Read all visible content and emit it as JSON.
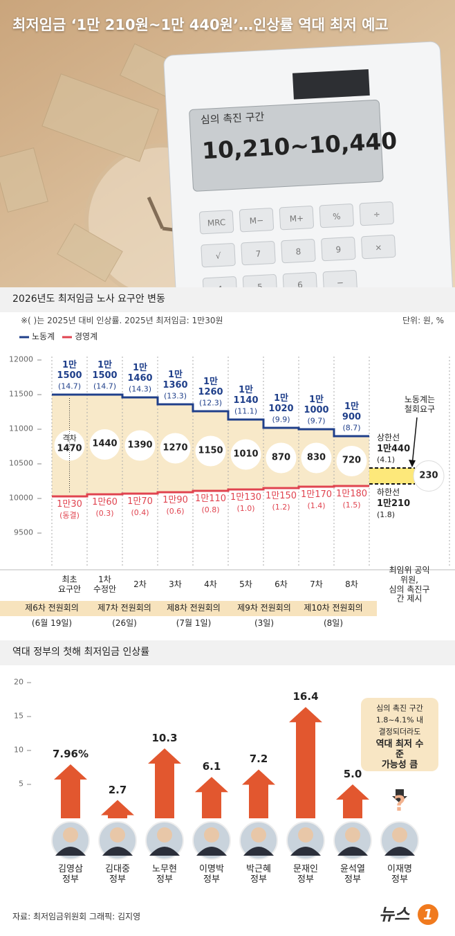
{
  "header": {
    "title": "최저임금 ‘1만 210원~1만 440원’…인상률 역대 최저 예고",
    "calculator": {
      "label": "심의 촉진 구간",
      "display": "10,210~10,440",
      "keys": [
        "MRC",
        "M−",
        "M+",
        "%",
        "÷",
        "√",
        "7",
        "8",
        "9",
        "×",
        "4",
        "5",
        "6",
        "−"
      ]
    }
  },
  "chart_data": [
    {
      "type": "step",
      "title": "2026년도 최저임금 노사 요구안 변동",
      "note": "※( )는 2025년 대비 인상률.  2025년 최저임금: 1만30원",
      "unit": "단위: 원, %",
      "categories": [
        "최초\n요구안",
        "1차\n수정안",
        "2차",
        "3차",
        "4차",
        "5차",
        "6차",
        "7차",
        "8차"
      ],
      "series": [
        {
          "name": "노동계",
          "color": "#1f3f8a",
          "values": [
            11500,
            11500,
            11460,
            11360,
            11260,
            11140,
            11020,
            11000,
            10900
          ],
          "value_labels": [
            "1만\n1500",
            "1만\n1500",
            "1만\n1460",
            "1만\n1360",
            "1만\n1260",
            "1만\n1140",
            "1만\n1020",
            "1만\n1000",
            "1만\n900"
          ],
          "rate_labels": [
            "(14.7)",
            "(14.7)",
            "(14.3)",
            "(13.3)",
            "(12.3)",
            "(11.1)",
            "(9.9)",
            "(9.7)",
            "(8.7)"
          ]
        },
        {
          "name": "경영계",
          "color": "#e0434f",
          "values": [
            10030,
            10060,
            10070,
            10090,
            10110,
            10130,
            10150,
            10170,
            10180
          ],
          "value_labels": [
            "1만30",
            "1만60",
            "1만70",
            "1만90",
            "1만110",
            "1만130",
            "1만150",
            "1만170",
            "1만180"
          ],
          "rate_labels": [
            "(동결)",
            "(0.3)",
            "(0.4)",
            "(0.6)",
            "(0.8)",
            "(1.0)",
            "(1.2)",
            "(1.4)",
            "(1.5)"
          ]
        }
      ],
      "gap_label": "격차",
      "gaps": [
        1470,
        1440,
        1390,
        1270,
        1150,
        1010,
        870,
        830,
        720
      ],
      "proposal": {
        "category": "최임위 공익위원,\n심의 촉진구간 제시",
        "upper_label": "상한선",
        "upper": 10440,
        "upper_value_label": "1만440",
        "upper_rate": "(4.1)",
        "lower_label": "하한선",
        "lower": 10210,
        "lower_value_label": "1만210",
        "lower_rate": "(1.8)",
        "gap": 230,
        "note": "노동계는\n철회요구",
        "color": "#fde87a"
      },
      "meetings": [
        {
          "name": "제6차 전원회의",
          "date": "(6월 19일)"
        },
        {
          "name": "제7차 전원회의",
          "date": "(26일)"
        },
        {
          "name": "제8차 전원회의",
          "date": "(7월 1일)"
        },
        {
          "name": "제9차 전원회의",
          "date": "(3일)"
        },
        {
          "name": "제10차 전원회의",
          "date": "(8일)"
        }
      ],
      "ylim": [
        9000,
        12150
      ],
      "yticks": [
        9500,
        10000,
        10500,
        11000,
        11500,
        12000
      ],
      "legend": "top-left"
    },
    {
      "type": "arrow-bar",
      "title": "역대 정부의 첫해 최저임금 인상률",
      "categories": [
        "김영삼\n정부",
        "김대중\n정부",
        "노무현\n정부",
        "이명박\n정부",
        "박근혜\n정부",
        "문재인\n정부",
        "윤석열\n정부",
        "이재명\n정부"
      ],
      "values": [
        7.96,
        2.7,
        10.3,
        6.1,
        7.2,
        16.4,
        5.0,
        null
      ],
      "value_labels": [
        "7.96%",
        "2.7",
        "10.3",
        "6.1",
        "7.2",
        "16.4",
        "5.0",
        null
      ],
      "unknown_mark": "?",
      "annotation": {
        "lines": [
          "심의 촉진 구간",
          "1.8~4.1% 내",
          "결정되더라도"
        ],
        "emphasis": "역대 최저 수준\n가능성 큼"
      },
      "color": "#e2572f",
      "ylim": [
        0,
        20
      ],
      "yticks": [
        5,
        10,
        15,
        20
      ]
    }
  ],
  "footer": {
    "source": "자료: 최저임금위원회   그래픽: 김지영",
    "logo": "뉴스",
    "logo_mark": "1"
  }
}
